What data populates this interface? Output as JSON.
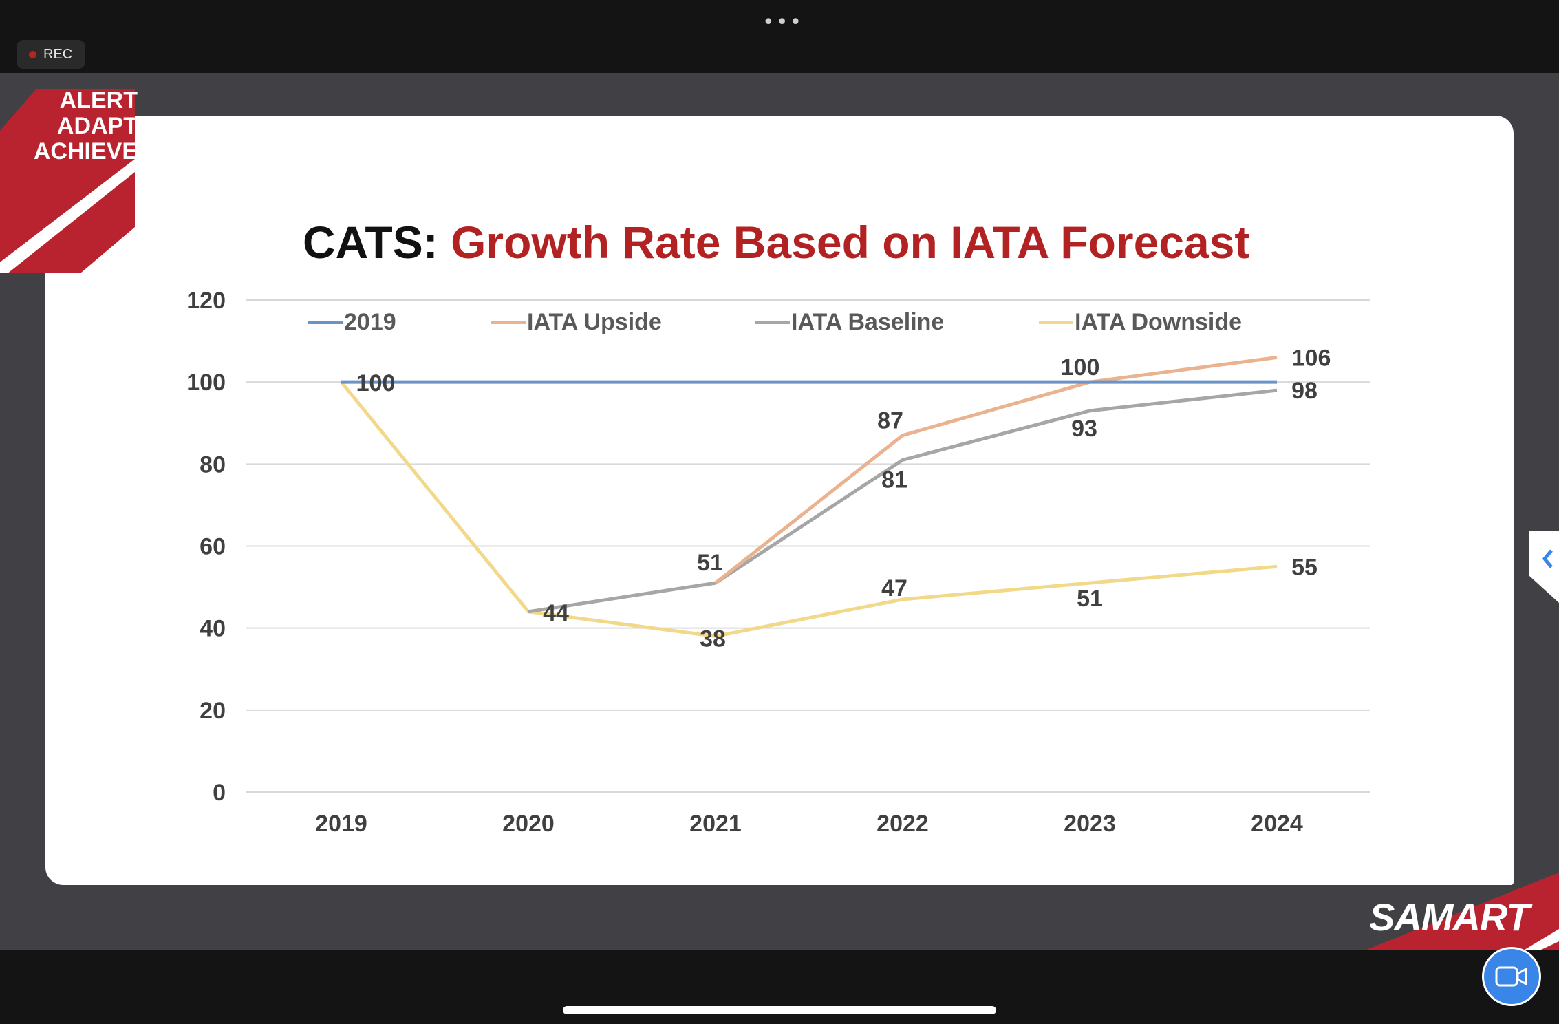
{
  "window": {
    "more_label": "•••",
    "rec_label": "REC"
  },
  "slide": {
    "title_prefix": "CATS:",
    "title_main": "Growth Rate Based on IATA Forecast",
    "brand_lines": [
      "ALERT",
      "ADAPT",
      "ACHIEVE"
    ],
    "logo_text": "SAMART"
  },
  "colors": {
    "title_red": "#b22222",
    "brand_red": "#b8232f",
    "cam_blue": "#3a86e8"
  },
  "icons": {
    "side_tab": "chevron-left-icon",
    "camera": "video-camera-icon"
  },
  "chart_data": {
    "type": "line",
    "categories": [
      "2019",
      "2020",
      "2021",
      "2022",
      "2023",
      "2024"
    ],
    "ylim": [
      0,
      120
    ],
    "yticks": [
      0,
      20,
      40,
      60,
      80,
      100,
      120
    ],
    "grid": true,
    "legend": "top",
    "series": [
      {
        "name": "2019",
        "color": "#6b93c8",
        "values": [
          100,
          100,
          100,
          100,
          100,
          100
        ],
        "labels": [
          100,
          null,
          null,
          null,
          null,
          null
        ]
      },
      {
        "name": "IATA Upside",
        "color": "#eab28e",
        "values": [
          null,
          null,
          51,
          87,
          100,
          106
        ],
        "labels": [
          null,
          null,
          null,
          87,
          100,
          106
        ]
      },
      {
        "name": "IATA Baseline",
        "color": "#a6a6a6",
        "values": [
          null,
          44,
          51,
          81,
          93,
          98
        ],
        "labels": [
          null,
          null,
          51,
          81,
          93,
          98
        ]
      },
      {
        "name": "IATA Downside",
        "color": "#f2d98a",
        "values": [
          100,
          44,
          38,
          47,
          51,
          55
        ],
        "labels": [
          100,
          44,
          38,
          47,
          51,
          55
        ]
      }
    ]
  }
}
